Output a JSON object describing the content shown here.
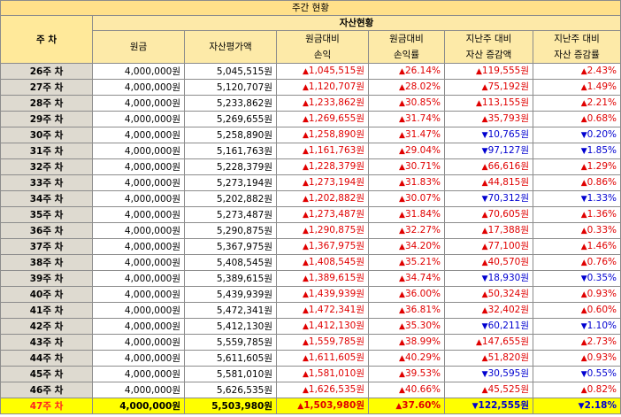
{
  "title": "주간 현황",
  "header": {
    "week_col": "주 차",
    "group_label": "자산현황",
    "columns": [
      {
        "line1": "원금",
        "line2": ""
      },
      {
        "line1": "자산평가액",
        "line2": ""
      },
      {
        "line1": "원금대비",
        "line2": "손익"
      },
      {
        "line1": "원금대비",
        "line2": "손익률"
      },
      {
        "line1": "지난주 대비",
        "line2": "자산 증감액"
      },
      {
        "line1": "지난주 대비",
        "line2": "자산 증감률"
      }
    ]
  },
  "colors": {
    "up": "#e00000",
    "down": "#0000d0",
    "highlight": "#ffff00",
    "header": "#fde9a8"
  },
  "rows": [
    {
      "week": "26주 차",
      "principal": "4,000,000원",
      "valuation": "5,045,515원",
      "pl": "1,045,515원",
      "pl_dir": "up",
      "pl_rate": "26.14%",
      "pl_rate_dir": "up",
      "wow": "119,555원",
      "wow_dir": "up",
      "wow_rate": "2.43%",
      "wow_rate_dir": "up"
    },
    {
      "week": "27주 차",
      "principal": "4,000,000원",
      "valuation": "5,120,707원",
      "pl": "1,120,707원",
      "pl_dir": "up",
      "pl_rate": "28.02%",
      "pl_rate_dir": "up",
      "wow": "75,192원",
      "wow_dir": "up",
      "wow_rate": "1.49%",
      "wow_rate_dir": "up"
    },
    {
      "week": "28주 차",
      "principal": "4,000,000원",
      "valuation": "5,233,862원",
      "pl": "1,233,862원",
      "pl_dir": "up",
      "pl_rate": "30.85%",
      "pl_rate_dir": "up",
      "wow": "113,155원",
      "wow_dir": "up",
      "wow_rate": "2.21%",
      "wow_rate_dir": "up"
    },
    {
      "week": "29주 차",
      "principal": "4,000,000원",
      "valuation": "5,269,655원",
      "pl": "1,269,655원",
      "pl_dir": "up",
      "pl_rate": "31.74%",
      "pl_rate_dir": "up",
      "wow": "35,793원",
      "wow_dir": "up",
      "wow_rate": "0.68%",
      "wow_rate_dir": "up"
    },
    {
      "week": "30주 차",
      "principal": "4,000,000원",
      "valuation": "5,258,890원",
      "pl": "1,258,890원",
      "pl_dir": "up",
      "pl_rate": "31.47%",
      "pl_rate_dir": "up",
      "wow": "10,765원",
      "wow_dir": "down",
      "wow_rate": "0.20%",
      "wow_rate_dir": "down"
    },
    {
      "week": "31주 차",
      "principal": "4,000,000원",
      "valuation": "5,161,763원",
      "pl": "1,161,763원",
      "pl_dir": "up",
      "pl_rate": "29.04%",
      "pl_rate_dir": "up",
      "wow": "97,127원",
      "wow_dir": "down",
      "wow_rate": "1.85%",
      "wow_rate_dir": "down"
    },
    {
      "week": "32주 차",
      "principal": "4,000,000원",
      "valuation": "5,228,379원",
      "pl": "1,228,379원",
      "pl_dir": "up",
      "pl_rate": "30.71%",
      "pl_rate_dir": "up",
      "wow": "66,616원",
      "wow_dir": "up",
      "wow_rate": "1.29%",
      "wow_rate_dir": "up"
    },
    {
      "week": "33주 차",
      "principal": "4,000,000원",
      "valuation": "5,273,194원",
      "pl": "1,273,194원",
      "pl_dir": "up",
      "pl_rate": "31.83%",
      "pl_rate_dir": "up",
      "wow": "44,815원",
      "wow_dir": "up",
      "wow_rate": "0.86%",
      "wow_rate_dir": "up"
    },
    {
      "week": "34주 차",
      "principal": "4,000,000원",
      "valuation": "5,202,882원",
      "pl": "1,202,882원",
      "pl_dir": "up",
      "pl_rate": "30.07%",
      "pl_rate_dir": "up",
      "wow": "70,312원",
      "wow_dir": "down",
      "wow_rate": "1.33%",
      "wow_rate_dir": "down"
    },
    {
      "week": "35주 차",
      "principal": "4,000,000원",
      "valuation": "5,273,487원",
      "pl": "1,273,487원",
      "pl_dir": "up",
      "pl_rate": "31.84%",
      "pl_rate_dir": "up",
      "wow": "70,605원",
      "wow_dir": "up",
      "wow_rate": "1.36%",
      "wow_rate_dir": "up"
    },
    {
      "week": "36주 차",
      "principal": "4,000,000원",
      "valuation": "5,290,875원",
      "pl": "1,290,875원",
      "pl_dir": "up",
      "pl_rate": "32.27%",
      "pl_rate_dir": "up",
      "wow": "17,388원",
      "wow_dir": "up",
      "wow_rate": "0.33%",
      "wow_rate_dir": "up"
    },
    {
      "week": "37주 차",
      "principal": "4,000,000원",
      "valuation": "5,367,975원",
      "pl": "1,367,975원",
      "pl_dir": "up",
      "pl_rate": "34.20%",
      "pl_rate_dir": "up",
      "wow": "77,100원",
      "wow_dir": "up",
      "wow_rate": "1.46%",
      "wow_rate_dir": "up"
    },
    {
      "week": "38주 차",
      "principal": "4,000,000원",
      "valuation": "5,408,545원",
      "pl": "1,408,545원",
      "pl_dir": "up",
      "pl_rate": "35.21%",
      "pl_rate_dir": "up",
      "wow": "40,570원",
      "wow_dir": "up",
      "wow_rate": "0.76%",
      "wow_rate_dir": "up"
    },
    {
      "week": "39주 차",
      "principal": "4,000,000원",
      "valuation": "5,389,615원",
      "pl": "1,389,615원",
      "pl_dir": "up",
      "pl_rate": "34.74%",
      "pl_rate_dir": "up",
      "wow": "18,930원",
      "wow_dir": "down",
      "wow_rate": "0.35%",
      "wow_rate_dir": "down"
    },
    {
      "week": "40주 차",
      "principal": "4,000,000원",
      "valuation": "5,439,939원",
      "pl": "1,439,939원",
      "pl_dir": "up",
      "pl_rate": "36.00%",
      "pl_rate_dir": "up",
      "wow": "50,324원",
      "wow_dir": "up",
      "wow_rate": "0.93%",
      "wow_rate_dir": "up"
    },
    {
      "week": "41주 차",
      "principal": "4,000,000원",
      "valuation": "5,472,341원",
      "pl": "1,472,341원",
      "pl_dir": "up",
      "pl_rate": "36.81%",
      "pl_rate_dir": "up",
      "wow": "32,402원",
      "wow_dir": "up",
      "wow_rate": "0.60%",
      "wow_rate_dir": "up"
    },
    {
      "week": "42주 차",
      "principal": "4,000,000원",
      "valuation": "5,412,130원",
      "pl": "1,412,130원",
      "pl_dir": "up",
      "pl_rate": "35.30%",
      "pl_rate_dir": "up",
      "wow": "60,211원",
      "wow_dir": "down",
      "wow_rate": "1.10%",
      "wow_rate_dir": "down"
    },
    {
      "week": "43주 차",
      "principal": "4,000,000원",
      "valuation": "5,559,785원",
      "pl": "1,559,785원",
      "pl_dir": "up",
      "pl_rate": "38.99%",
      "pl_rate_dir": "up",
      "wow": "147,655원",
      "wow_dir": "up",
      "wow_rate": "2.73%",
      "wow_rate_dir": "up"
    },
    {
      "week": "44주 차",
      "principal": "4,000,000원",
      "valuation": "5,611,605원",
      "pl": "1,611,605원",
      "pl_dir": "up",
      "pl_rate": "40.29%",
      "pl_rate_dir": "up",
      "wow": "51,820원",
      "wow_dir": "up",
      "wow_rate": "0.93%",
      "wow_rate_dir": "up"
    },
    {
      "week": "45주 차",
      "principal": "4,000,000원",
      "valuation": "5,581,010원",
      "pl": "1,581,010원",
      "pl_dir": "up",
      "pl_rate": "39.53%",
      "pl_rate_dir": "up",
      "wow": "30,595원",
      "wow_dir": "down",
      "wow_rate": "0.55%",
      "wow_rate_dir": "down"
    },
    {
      "week": "46주 차",
      "principal": "4,000,000원",
      "valuation": "5,626,535원",
      "pl": "1,626,535원",
      "pl_dir": "up",
      "pl_rate": "40.66%",
      "pl_rate_dir": "up",
      "wow": "45,525원",
      "wow_dir": "up",
      "wow_rate": "0.82%",
      "wow_rate_dir": "up"
    },
    {
      "week": "47주 차",
      "principal": "4,000,000원",
      "valuation": "5,503,980원",
      "pl": "1,503,980원",
      "pl_dir": "up",
      "pl_rate": "37.60%",
      "pl_rate_dir": "up",
      "wow": "122,555원",
      "wow_dir": "down",
      "wow_rate": "2.18%",
      "wow_rate_dir": "down",
      "current": true
    }
  ]
}
